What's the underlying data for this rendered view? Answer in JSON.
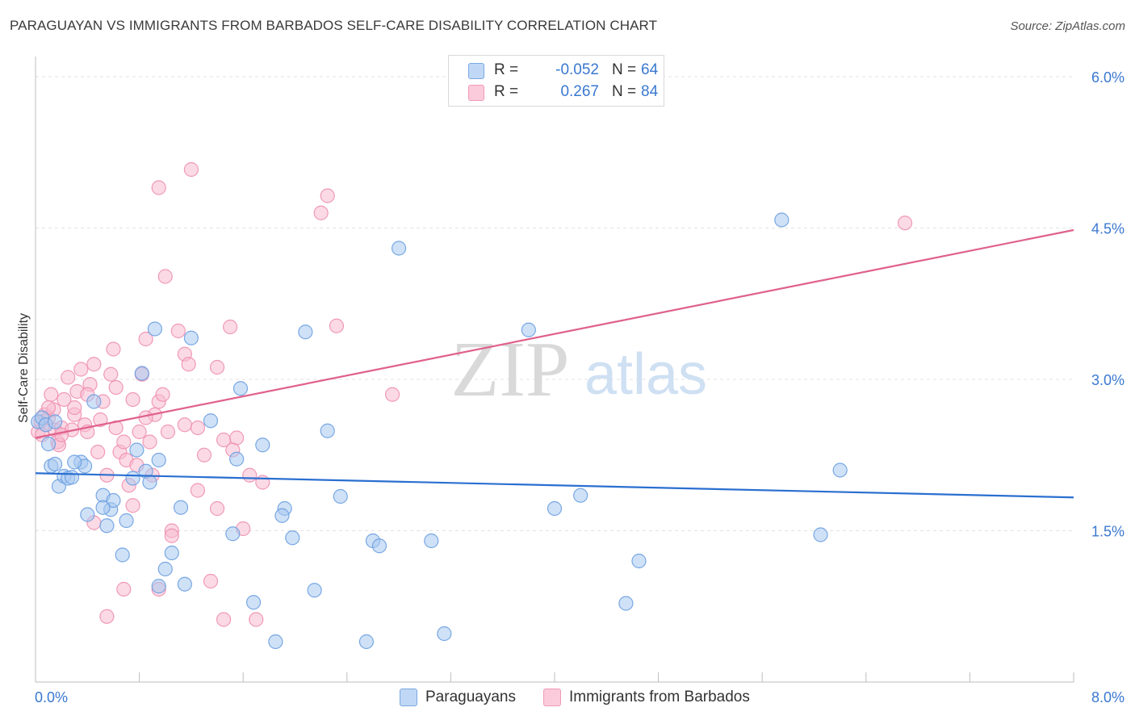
{
  "title": "PARAGUAYAN VS IMMIGRANTS FROM BARBADOS SELF-CARE DISABILITY CORRELATION CHART",
  "source": "Source: ZipAtlas.com",
  "watermark": {
    "zip": "ZIP",
    "atlas": "atlas"
  },
  "legend": {
    "rows": [
      {
        "r_label": "R =",
        "r_value": "-0.052",
        "n_label": "N =",
        "n_value": "64"
      },
      {
        "r_label": "R =",
        "r_value": "0.267",
        "n_label": "N =",
        "n_value": "84"
      }
    ]
  },
  "colors": {
    "blue_fill": "#a8c8f0",
    "blue_stroke": "#6a9fe0",
    "blue_line": "#2a6fd0",
    "pink_fill": "#f8bcd0",
    "pink_stroke": "#ee8fb0",
    "pink_line": "#e0608c",
    "tick_label": "#3a78d0",
    "grid": "#e2e2e2"
  },
  "chart_data": {
    "type": "scatter",
    "title": "PARAGUAYAN VS IMMIGRANTS FROM BARBADOS SELF-CARE DISABILITY CORRELATION CHART",
    "xlabel": "",
    "ylabel": "Self-Care Disability",
    "xlim": [
      0,
      8.0
    ],
    "ylim": [
      0,
      6.2
    ],
    "x_tick_labels": [
      "0.0%",
      "8.0%"
    ],
    "y_ticks": [
      1.5,
      3.0,
      4.5,
      6.0
    ],
    "y_tick_labels": [
      "1.5%",
      "3.0%",
      "4.5%",
      "6.0%"
    ],
    "grid": true,
    "legend_position": "top-center",
    "series": [
      {
        "name": "Paraguayans",
        "r": -0.052,
        "n": 64,
        "trend": {
          "x": [
            0,
            8.0
          ],
          "y": [
            2.07,
            1.83
          ]
        },
        "points": [
          [
            0.02,
            2.58
          ],
          [
            0.05,
            2.62
          ],
          [
            0.08,
            2.55
          ],
          [
            0.1,
            2.36
          ],
          [
            0.12,
            2.14
          ],
          [
            0.15,
            2.16
          ],
          [
            0.18,
            1.94
          ],
          [
            0.22,
            2.04
          ],
          [
            0.25,
            2.02
          ],
          [
            0.28,
            2.03
          ],
          [
            0.35,
            2.18
          ],
          [
            0.38,
            2.14
          ],
          [
            0.4,
            1.66
          ],
          [
            0.45,
            2.78
          ],
          [
            0.52,
            1.85
          ],
          [
            0.55,
            1.55
          ],
          [
            0.58,
            1.71
          ],
          [
            0.6,
            1.8
          ],
          [
            0.67,
            1.26
          ],
          [
            0.7,
            1.6
          ],
          [
            0.75,
            2.02
          ],
          [
            0.78,
            2.3
          ],
          [
            0.82,
            3.06
          ],
          [
            0.85,
            2.09
          ],
          [
            0.88,
            1.98
          ],
          [
            0.92,
            3.5
          ],
          [
            0.95,
            2.2
          ],
          [
            1.0,
            1.12
          ],
          [
            1.05,
            1.28
          ],
          [
            1.12,
            1.73
          ],
          [
            1.15,
            0.97
          ],
          [
            1.2,
            3.41
          ],
          [
            1.35,
            2.59
          ],
          [
            1.52,
            1.47
          ],
          [
            1.55,
            2.21
          ],
          [
            1.58,
            2.91
          ],
          [
            1.68,
            0.79
          ],
          [
            1.75,
            2.35
          ],
          [
            1.85,
            0.4
          ],
          [
            1.92,
            1.72
          ],
          [
            1.98,
            1.43
          ],
          [
            2.08,
            3.47
          ],
          [
            2.15,
            0.91
          ],
          [
            2.25,
            2.49
          ],
          [
            2.35,
            1.84
          ],
          [
            2.55,
            0.4
          ],
          [
            2.6,
            1.4
          ],
          [
            2.65,
            1.35
          ],
          [
            2.8,
            4.3
          ],
          [
            3.05,
            1.4
          ],
          [
            3.15,
            0.48
          ],
          [
            3.8,
            3.49
          ],
          [
            4.0,
            1.72
          ],
          [
            4.2,
            1.85
          ],
          [
            4.55,
            0.78
          ],
          [
            4.65,
            1.2
          ],
          [
            5.75,
            4.58
          ],
          [
            6.05,
            1.46
          ],
          [
            6.2,
            2.1
          ],
          [
            0.15,
            2.58
          ],
          [
            0.3,
            2.18
          ],
          [
            0.52,
            1.73
          ],
          [
            0.95,
            0.95
          ],
          [
            1.9,
            1.65
          ]
        ]
      },
      {
        "name": "Immigrants from Barbados",
        "r": 0.267,
        "n": 84,
        "trend": {
          "x": [
            0,
            8.0
          ],
          "y": [
            2.42,
            4.48
          ]
        },
        "points": [
          [
            0.02,
            2.48
          ],
          [
            0.04,
            2.58
          ],
          [
            0.05,
            2.45
          ],
          [
            0.07,
            2.65
          ],
          [
            0.08,
            2.55
          ],
          [
            0.1,
            2.62
          ],
          [
            0.12,
            2.85
          ],
          [
            0.14,
            2.7
          ],
          [
            0.15,
            2.5
          ],
          [
            0.17,
            2.38
          ],
          [
            0.2,
            2.52
          ],
          [
            0.22,
            2.8
          ],
          [
            0.25,
            3.02
          ],
          [
            0.28,
            2.5
          ],
          [
            0.3,
            2.65
          ],
          [
            0.32,
            2.88
          ],
          [
            0.35,
            3.1
          ],
          [
            0.38,
            2.55
          ],
          [
            0.4,
            2.48
          ],
          [
            0.42,
            2.95
          ],
          [
            0.45,
            3.15
          ],
          [
            0.48,
            2.28
          ],
          [
            0.5,
            2.6
          ],
          [
            0.52,
            2.78
          ],
          [
            0.55,
            2.05
          ],
          [
            0.58,
            3.05
          ],
          [
            0.6,
            3.3
          ],
          [
            0.62,
            2.52
          ],
          [
            0.65,
            2.28
          ],
          [
            0.68,
            2.38
          ],
          [
            0.7,
            2.2
          ],
          [
            0.72,
            1.95
          ],
          [
            0.75,
            2.8
          ],
          [
            0.78,
            2.15
          ],
          [
            0.8,
            2.48
          ],
          [
            0.82,
            3.05
          ],
          [
            0.85,
            3.4
          ],
          [
            0.88,
            2.38
          ],
          [
            0.9,
            2.05
          ],
          [
            0.92,
            2.65
          ],
          [
            0.95,
            2.78
          ],
          [
            0.98,
            2.85
          ],
          [
            1.0,
            4.02
          ],
          [
            1.02,
            2.48
          ],
          [
            1.05,
            1.5
          ],
          [
            1.1,
            3.48
          ],
          [
            1.15,
            3.25
          ],
          [
            1.18,
            3.15
          ],
          [
            1.2,
            5.08
          ],
          [
            1.25,
            1.9
          ],
          [
            1.3,
            2.25
          ],
          [
            1.35,
            1.0
          ],
          [
            1.4,
            1.72
          ],
          [
            1.45,
            2.4
          ],
          [
            1.5,
            3.52
          ],
          [
            1.55,
            2.42
          ],
          [
            1.6,
            1.52
          ],
          [
            1.65,
            2.05
          ],
          [
            1.7,
            0.62
          ],
          [
            1.75,
            1.98
          ],
          [
            0.45,
            1.58
          ],
          [
            0.55,
            0.65
          ],
          [
            0.68,
            0.92
          ],
          [
            0.95,
            0.92
          ],
          [
            1.05,
            1.45
          ],
          [
            0.62,
            2.92
          ],
          [
            0.75,
            1.75
          ],
          [
            0.85,
            2.62
          ],
          [
            1.15,
            2.55
          ],
          [
            1.25,
            2.52
          ],
          [
            1.4,
            3.12
          ],
          [
            1.45,
            0.62
          ],
          [
            1.52,
            2.3
          ],
          [
            2.2,
            4.65
          ],
          [
            2.25,
            4.82
          ],
          [
            2.32,
            3.53
          ],
          [
            2.75,
            2.85
          ],
          [
            6.7,
            4.55
          ],
          [
            0.18,
            2.35
          ],
          [
            0.3,
            2.72
          ],
          [
            0.4,
            2.85
          ],
          [
            0.95,
            4.9
          ],
          [
            0.1,
            2.72
          ],
          [
            0.2,
            2.45
          ]
        ]
      }
    ]
  },
  "bottom_legend": [
    {
      "label": "Paraguayans"
    },
    {
      "label": "Immigrants from Barbados"
    }
  ],
  "axis_labels": {
    "x_left": "0.0%",
    "x_right": "8.0%",
    "y_title": "Self-Care Disability"
  }
}
